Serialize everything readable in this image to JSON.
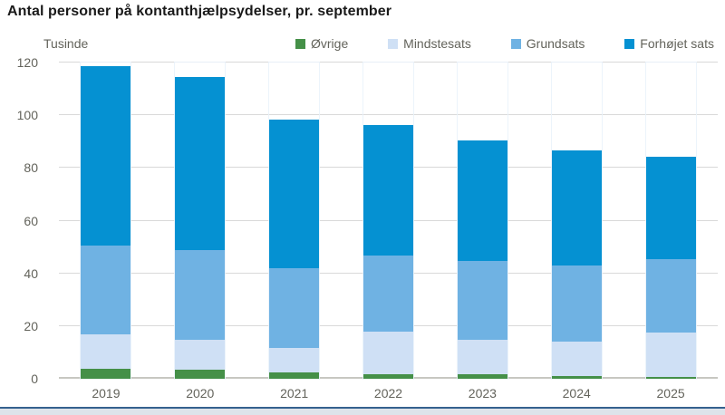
{
  "title": "Antal personer på kontanthjælpsydelser, pr. september",
  "axis_unit": "Tusinde",
  "colors": {
    "series_green": "#459048",
    "series_light_blue": "#cfe0f5",
    "series_mid_blue": "#6fb2e3",
    "series_dark_blue": "#0591d2",
    "gridline": "#d9d9d9",
    "axis_text": "#63635b",
    "title_text": "#1a1a1a",
    "footer_line": "#35618e",
    "footer_band": "#dde3ea"
  },
  "chart_data": {
    "type": "bar",
    "stacked": true,
    "title": "Antal personer på kontanthjælpsydelser, pr. september",
    "ylabel": "Tusinde",
    "xlabel": "",
    "categories": [
      "2019",
      "2020",
      "2021",
      "2022",
      "2023",
      "2024",
      "2025"
    ],
    "series": [
      {
        "name": "Øvrige",
        "color": "#459048",
        "values": [
          3.9,
          3.4,
          2.5,
          1.8,
          1.6,
          1.1,
          0.8
        ]
      },
      {
        "name": "Mindstesats",
        "color": "#cfe0f5",
        "values": [
          12.8,
          11.3,
          9.3,
          16.1,
          13.3,
          13.0,
          16.7
        ]
      },
      {
        "name": "Grundsats",
        "color": "#6fb2e3",
        "values": [
          34.0,
          34.3,
          30.2,
          29.0,
          29.8,
          28.8,
          27.9
        ]
      },
      {
        "name": "Forhøjet sats",
        "color": "#0591d2",
        "values": [
          67.9,
          65.6,
          56.2,
          49.5,
          45.9,
          43.7,
          39.0
        ]
      }
    ],
    "totals": [
      118.6,
      114.6,
      98.2,
      96.4,
      90.6,
      86.6,
      84.4
    ],
    "ylim": [
      0,
      120
    ],
    "yticks": [
      0,
      20,
      40,
      60,
      80,
      100,
      120
    ],
    "grid": true,
    "legend_position": "top"
  }
}
